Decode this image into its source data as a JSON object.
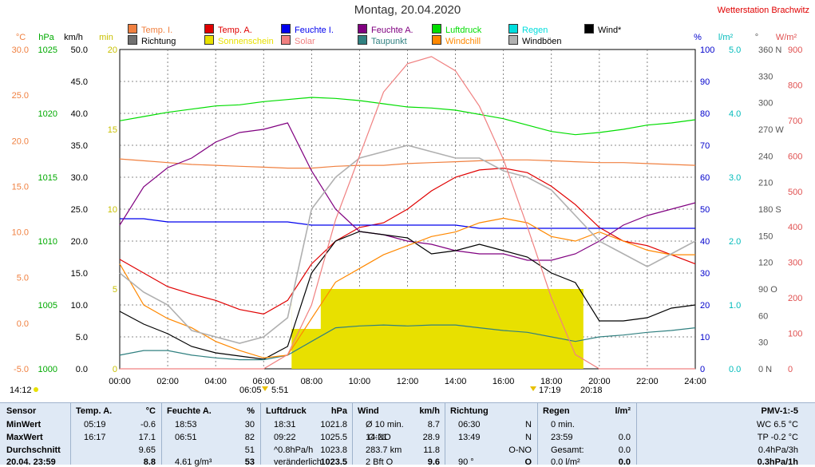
{
  "header": {
    "title": "Montag, 20.04.2020",
    "station": "Wetterstation Brachwitz"
  },
  "legend": [
    {
      "label": "Temp. I.",
      "color": "#f08040"
    },
    {
      "label": "Temp. A.",
      "color": "#e00000"
    },
    {
      "label": "Feuchte I.",
      "color": "#0000ee"
    },
    {
      "label": "Feuchte A.",
      "color": "#800080"
    },
    {
      "label": "Luftdruck",
      "color": "#00dd00"
    },
    {
      "label": "Regen",
      "color": "#00dddd"
    },
    {
      "label": "Wind*",
      "color": "#000000"
    },
    {
      "label": "Richtung",
      "color": "#707070"
    },
    {
      "label": "Sonnenschein",
      "color": "#e8e000"
    },
    {
      "label": "Solar",
      "color": "#f08080"
    },
    {
      "label": "Taupunkt",
      "color": "#308080"
    },
    {
      "label": "Windchill",
      "color": "#ff8800"
    },
    {
      "label": "Windböen",
      "color": "#b0b0b0"
    }
  ],
  "axes": {
    "temp": {
      "unit": "°C",
      "ticks": [
        "30.0",
        "25.0",
        "20.0",
        "15.0",
        "10.0",
        "5.0",
        "0.0",
        "-5.0"
      ],
      "color": "#f08040"
    },
    "press": {
      "unit": "hPa",
      "ticks": [
        "1025",
        "1020",
        "1015",
        "1010",
        "1005",
        "1000"
      ],
      "color": "#00aa00"
    },
    "wind": {
      "unit": "km/h",
      "ticks": [
        "50.0",
        "45.0",
        "40.0",
        "35.0",
        "30.0",
        "25.0",
        "20.0",
        "15.0",
        "10.0",
        "5.0",
        "0.0"
      ],
      "color": "#000000"
    },
    "minute": {
      "unit": "min",
      "ticks": [
        "20",
        "15",
        "10",
        "5",
        "0"
      ],
      "color": "#c8c000"
    },
    "hum": {
      "unit": "%",
      "ticks": [
        "100",
        "90",
        "80",
        "70",
        "60",
        "50",
        "40",
        "30",
        "20",
        "10",
        "0"
      ],
      "color": "#0000cc"
    },
    "rain": {
      "unit": "l/m²",
      "ticks": [
        "5.0",
        "4.0",
        "3.0",
        "2.0",
        "1.0",
        "0.0"
      ],
      "color": "#00bbbb"
    },
    "dir": {
      "unit": "°",
      "ticks": [
        "360 N",
        "330",
        "300",
        "270 W",
        "240",
        "210",
        "180 S",
        "150",
        "120",
        "90 O",
        "60",
        "30",
        "0 N"
      ],
      "color": "#555555"
    },
    "solar": {
      "unit": "W/m²",
      "ticks": [
        "900",
        "800",
        "700",
        "600",
        "500",
        "400",
        "300",
        "200",
        "100",
        "0"
      ],
      "color": "#e05050"
    },
    "time": [
      "00:00",
      "02:00",
      "04:00",
      "06:00",
      "08:00",
      "10:00",
      "12:00",
      "14:00",
      "16:00",
      "18:00",
      "20:00",
      "22:00",
      "24:00"
    ]
  },
  "markers": {
    "left_time": "14:12",
    "sunrise": "06:05",
    "sunrise2": "5:51",
    "sunset1": "17:19",
    "sunset2": "20:18"
  },
  "chart_data": {
    "type": "line",
    "x": [
      "00:00",
      "01:00",
      "02:00",
      "03:00",
      "04:00",
      "05:00",
      "06:00",
      "07:00",
      "08:00",
      "09:00",
      "10:00",
      "11:00",
      "12:00",
      "13:00",
      "14:00",
      "15:00",
      "16:00",
      "17:00",
      "18:00",
      "19:00",
      "20:00",
      "21:00",
      "22:00",
      "23:00",
      "24:00"
    ],
    "series": [
      {
        "name": "Temp. I.",
        "axis": "°C",
        "values": [
          18.0,
          17.8,
          17.6,
          17.4,
          17.3,
          17.2,
          17.1,
          17.0,
          17.0,
          17.2,
          17.3,
          17.3,
          17.5,
          17.6,
          17.7,
          17.8,
          17.9,
          17.9,
          17.8,
          17.7,
          17.6,
          17.6,
          17.5,
          17.4,
          17.3
        ]
      },
      {
        "name": "Temp. A.",
        "axis": "°C",
        "values": [
          7.0,
          5.5,
          4.0,
          3.2,
          2.5,
          1.5,
          1.0,
          2.5,
          6.5,
          9.0,
          10.5,
          11.0,
          12.5,
          14.5,
          16.0,
          16.8,
          17.0,
          16.5,
          15.0,
          13.0,
          10.5,
          9.0,
          8.5,
          7.5,
          6.5
        ]
      },
      {
        "name": "Feuchte I.",
        "axis": "%",
        "values": [
          47,
          47,
          46,
          46,
          46,
          46,
          46,
          46,
          45,
          45,
          45,
          45,
          45,
          45,
          45,
          44,
          44,
          44,
          44,
          44,
          44,
          44,
          44,
          44,
          44
        ]
      },
      {
        "name": "Feuchte A.",
        "axis": "%",
        "values": [
          45,
          57,
          63,
          66,
          71,
          74,
          75,
          77,
          62,
          50,
          43,
          42,
          40,
          39,
          37,
          36,
          36,
          34,
          34,
          36,
          40,
          45,
          48,
          50,
          52
        ]
      },
      {
        "name": "Luftdruck",
        "axis": "hPa",
        "values": [
          1023.3,
          1023.7,
          1024.1,
          1024.4,
          1024.7,
          1024.8,
          1025.1,
          1025.3,
          1025.5,
          1025.4,
          1025.2,
          1024.9,
          1024.6,
          1024.5,
          1024.3,
          1023.9,
          1023.5,
          1022.9,
          1022.3,
          1022.0,
          1022.2,
          1022.5,
          1022.9,
          1023.1,
          1023.4
        ]
      },
      {
        "name": "Wind*",
        "axis": "km/h",
        "values": [
          9.0,
          7.0,
          5.5,
          3.5,
          2.5,
          2.0,
          1.5,
          3.5,
          15.0,
          20.0,
          21.5,
          21.0,
          20.5,
          18.0,
          18.5,
          19.5,
          18.5,
          17.5,
          15.0,
          13.5,
          7.5,
          7.5,
          8.0,
          9.5,
          10.0
        ]
      },
      {
        "name": "Taupunkt",
        "axis": "°C",
        "values": [
          -3.5,
          -3.0,
          -3.0,
          -3.5,
          -3.8,
          -4.0,
          -4.0,
          -3.5,
          -2.0,
          -0.5,
          -0.3,
          -0.2,
          -0.3,
          -0.2,
          -0.2,
          -0.5,
          -0.8,
          -1.0,
          -1.5,
          -2.0,
          -1.5,
          -1.3,
          -1.0,
          -0.8,
          -0.5
        ]
      },
      {
        "name": "Windchill",
        "axis": "°C",
        "values": [
          6.5,
          2.0,
          0.5,
          -0.5,
          -2.0,
          -3.0,
          -3.8,
          -3.5,
          0.5,
          4.5,
          6.0,
          7.5,
          8.5,
          9.5,
          10.0,
          11.0,
          11.5,
          11.0,
          9.5,
          9.0,
          10.0,
          9.0,
          8.0,
          7.5,
          7.5
        ]
      },
      {
        "name": "Windböen",
        "axis": "km/h",
        "values": [
          15,
          12,
          10,
          6,
          5,
          4,
          5,
          8,
          25,
          30,
          33,
          34,
          35,
          34,
          33,
          33,
          31,
          30,
          28,
          24,
          20,
          18,
          16,
          18,
          20
        ]
      },
      {
        "name": "Solar",
        "axis": "W/m²",
        "values": [
          0,
          0,
          0,
          0,
          0,
          0,
          0,
          40,
          180,
          420,
          600,
          780,
          860,
          880,
          840,
          740,
          590,
          400,
          200,
          40,
          0,
          0,
          0,
          0,
          0
        ]
      }
    ],
    "sunshine_minutes": {
      "start": "07:10",
      "end": "19:20",
      "level_min": 2.5,
      "peak_min": 5
    },
    "ylim_temp": [
      -5,
      30
    ],
    "ylim_wind": [
      0,
      50
    ]
  },
  "table": {
    "sensor": {
      "head": "Sensor",
      "rows": [
        "MinWert",
        "MaxWert",
        "Durchschnitt",
        "20.04. 23:59"
      ]
    },
    "temp": {
      "head": "Temp. A.",
      "unit": "°C",
      "rows": [
        [
          "05:19",
          "-0.6"
        ],
        [
          "16:17",
          "17.1"
        ],
        [
          "",
          "9.65"
        ],
        [
          "",
          "8.8"
        ]
      ]
    },
    "feuchte": {
      "head": "Feuchte A.",
      "unit": "%",
      "rows": [
        [
          "18:53",
          "30"
        ],
        [
          "06:51",
          "82"
        ],
        [
          "",
          "51"
        ],
        [
          "4.61 g/m³",
          "53"
        ]
      ]
    },
    "luft": {
      "head": "Luftdruck",
      "unit": "hPa",
      "rows": [
        [
          "18:31",
          "1021.8"
        ],
        [
          "09:22",
          "1025.5"
        ],
        [
          "^0.8hPa/h",
          "1023.8"
        ],
        [
          "veränderlich",
          "1023.5"
        ]
      ]
    },
    "wind": {
      "head": "Wind",
      "unit": "km/h",
      "rows": [
        [
          "Ø 10 min.",
          "",
          "8.7"
        ],
        [
          "14:21",
          "O-NO",
          "28.9"
        ],
        [
          "283.7 km",
          "",
          "11.8"
        ],
        [
          "2 Bft O",
          "",
          "9.6"
        ]
      ]
    },
    "richtung": {
      "head": "Richtung",
      "rows": [
        [
          "06:30",
          "N"
        ],
        [
          "13:49",
          "N"
        ],
        [
          "",
          "O-NO"
        ],
        [
          "90 °",
          "O"
        ]
      ]
    },
    "regen": {
      "head": "Regen",
      "unit": "l/m²",
      "rows": [
        [
          "0 min.",
          ""
        ],
        [
          "23:59",
          "0.0"
        ],
        [
          "Gesamt:",
          "0.0"
        ],
        [
          "0.0 l/m²",
          "0.0"
        ]
      ]
    },
    "pmv": {
      "head": "PMV-1:-5",
      "rows": [
        "WC 6.5 °C",
        "TP -0.2 °C",
        "0.4hPa/3h",
        "0.3hPa/1h"
      ]
    }
  }
}
